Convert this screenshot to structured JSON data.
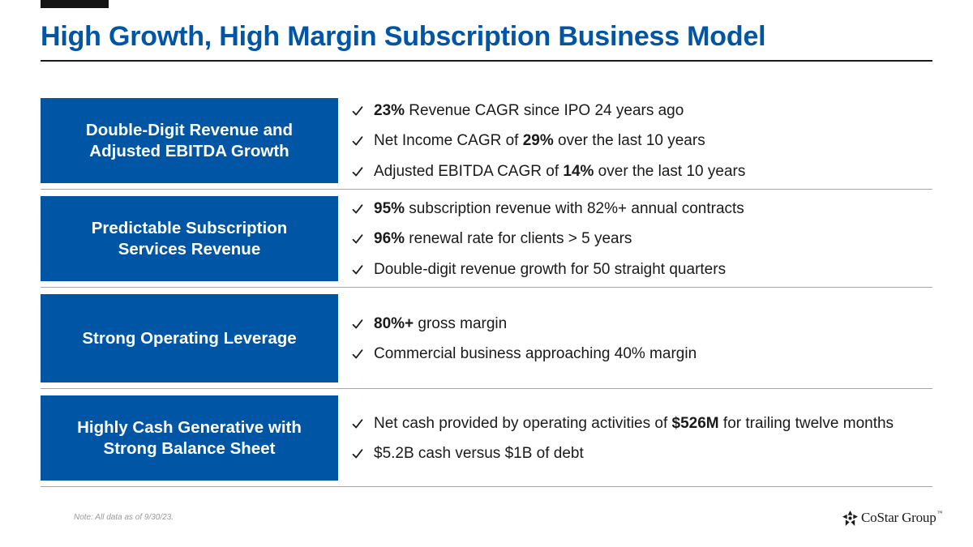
{
  "slide": {
    "title": "High Growth, High Margin Subscription Business Model",
    "note": "Note: All data as of 9/30/23."
  },
  "logo": {
    "name": "CoStar Group",
    "trademark": "™"
  },
  "colors": {
    "accent": "#0055a5",
    "text": "#1a1a1a",
    "rule": "#a6a6a6"
  },
  "rows": [
    {
      "label": "Double-Digit Revenue and\nAdjusted EBITDA Growth",
      "bullets": [
        [
          {
            "t": "23%",
            "b": true
          },
          {
            "t": " Revenue CAGR since IPO 24 years ago"
          }
        ],
        [
          {
            "t": "Net Income CAGR of "
          },
          {
            "t": "29%",
            "b": true
          },
          {
            "t": " over the last 10 years"
          }
        ],
        [
          {
            "t": "Adjusted EBITDA CAGR of "
          },
          {
            "t": "14%",
            "b": true
          },
          {
            "t": " over the last 10 years"
          }
        ]
      ]
    },
    {
      "label": "Predictable Subscription\nServices Revenue",
      "bullets": [
        [
          {
            "t": "95%",
            "b": true
          },
          {
            "t": " subscription revenue with 82%+ annual contracts"
          }
        ],
        [
          {
            "t": "96%",
            "b": true
          },
          {
            "t": " renewal rate for clients > 5 years"
          }
        ],
        [
          {
            "t": "Double-digit revenue growth for 50 straight quarters"
          }
        ]
      ]
    },
    {
      "label": "Strong Operating Leverage",
      "bullets": [
        [
          {
            "t": "80%+",
            "b": true
          },
          {
            "t": " gross margin"
          }
        ],
        [
          {
            "t": "Commercial business approaching 40% margin"
          }
        ]
      ]
    },
    {
      "label": "Highly Cash Generative with\nStrong Balance Sheet",
      "bullets": [
        [
          {
            "t": "Net cash provided by operating activities of "
          },
          {
            "t": "$526M",
            "b": true
          },
          {
            "t": " for trailing twelve months"
          }
        ],
        [
          {
            "t": "$5.2B cash versus $1B of debt"
          }
        ]
      ]
    }
  ]
}
